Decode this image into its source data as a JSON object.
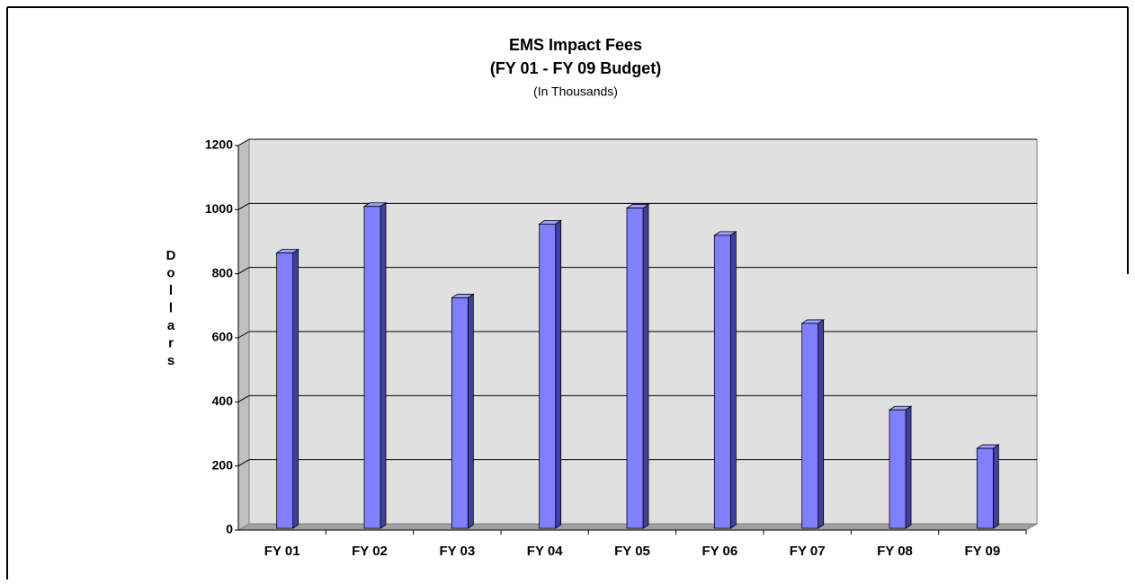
{
  "chart_data": {
    "type": "bar3d",
    "title": "EMS Impact Fees",
    "subtitle": "(FY 01 - FY 09 Budget)",
    "note": "(In Thousands)",
    "y_label": "Dollars",
    "categories": [
      "FY 01",
      "FY 02",
      "FY 03",
      "FY 04",
      "FY 05",
      "FY 06",
      "FY 07",
      "FY 08",
      "FY 09"
    ],
    "values": [
      865,
      1010,
      725,
      955,
      1005,
      920,
      645,
      375,
      255
    ],
    "color": "#8080ff",
    "ylim": [
      0,
      1200
    ],
    "yticks": [
      0,
      200,
      400,
      600,
      800,
      1000,
      1200
    ],
    "grid": true
  }
}
